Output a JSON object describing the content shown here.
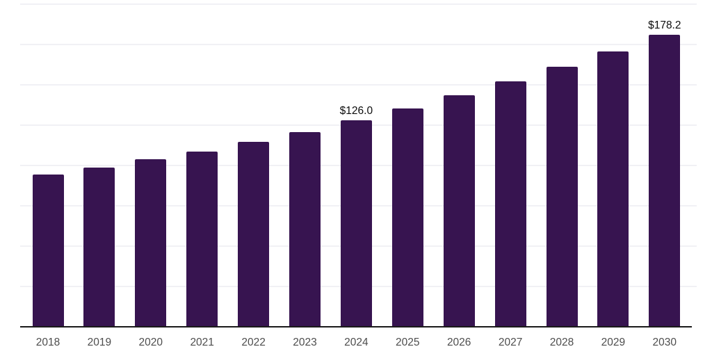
{
  "page": {
    "background_color": "#ffffff"
  },
  "chart_data": {
    "type": "bar",
    "title": "",
    "xlabel": "",
    "ylabel": "",
    "categories": [
      "2018",
      "2019",
      "2020",
      "2021",
      "2022",
      "2023",
      "2024",
      "2025",
      "2026",
      "2027",
      "2028",
      "2029",
      "2030"
    ],
    "values": [
      92.8,
      97.1,
      102.1,
      106.6,
      112.7,
      118.6,
      126.0,
      133.0,
      141.1,
      149.8,
      158.7,
      168.0,
      178.2
    ],
    "value_labels": [
      "",
      "",
      "",
      "",
      "",
      "",
      "$126.0",
      "",
      "",
      "",
      "",
      "",
      "$178.2"
    ],
    "ylim": [
      0,
      200
    ],
    "grid_step": 25,
    "grid": true,
    "legend": false,
    "y_axis_labels_visible": false,
    "bar_color": "#371450",
    "axis_line_color": "#1a1a1a",
    "gridline_color": "#f1f1f5",
    "axis_label_color": "#4d4d4d",
    "value_label_color": "#0d0d0d"
  }
}
